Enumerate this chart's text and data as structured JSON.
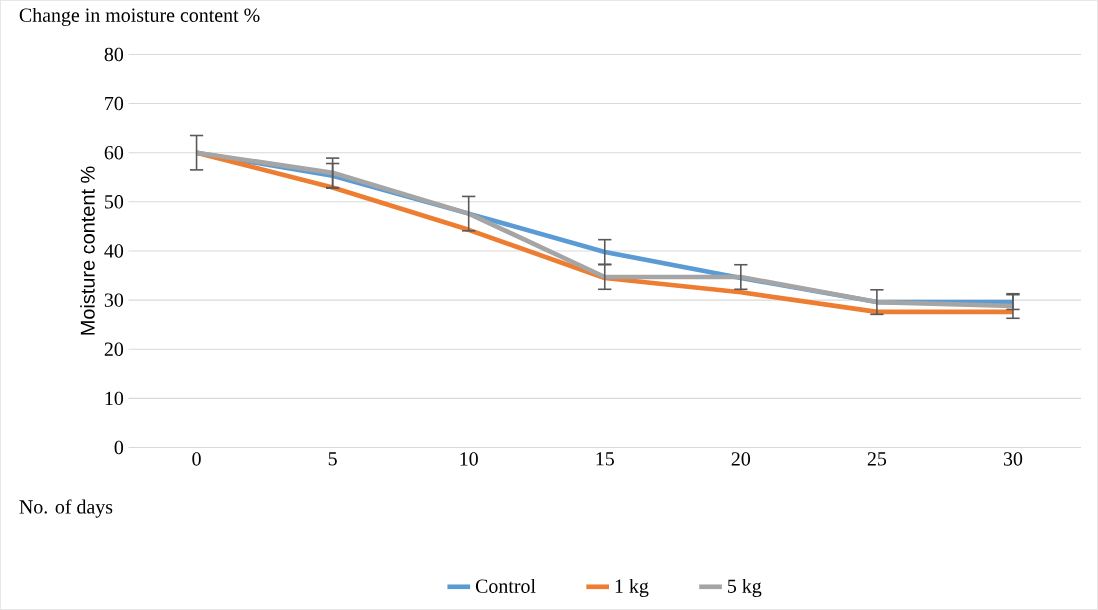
{
  "chart_data": {
    "type": "line",
    "title": "Change in moisture content %",
    "ylabel": "Moisture content %",
    "xlabel": "No. of days",
    "categories": [
      "0",
      "5",
      "10",
      "15",
      "20",
      "25",
      "30"
    ],
    "series": [
      {
        "name": "Control",
        "color": "#5b9bd5",
        "values": [
          60,
          55.3,
          47.6,
          39.8,
          34.5,
          29.6,
          29.6
        ],
        "errors": [
          null,
          2.5,
          null,
          2.5,
          null,
          null,
          1.5
        ]
      },
      {
        "name": "1 kg",
        "color": "#ed7d31",
        "values": [
          60,
          52.9,
          44.3,
          34.5,
          31.6,
          27.6,
          27.6
        ]
      },
      {
        "name": "5 kg",
        "color": "#a5a5a5",
        "values": [
          60,
          55.9,
          47.6,
          34.7,
          34.7,
          29.6,
          28.8
        ],
        "errors": [
          3.5,
          3,
          3.5,
          2.5,
          2.5,
          2.5,
          2.5
        ]
      }
    ],
    "ylim": [
      0,
      80
    ],
    "yticks": [
      0,
      10,
      20,
      30,
      40,
      50,
      60,
      70,
      80
    ],
    "grid": "y",
    "legend": "bottom",
    "marker": "none",
    "line_style": "solid"
  }
}
